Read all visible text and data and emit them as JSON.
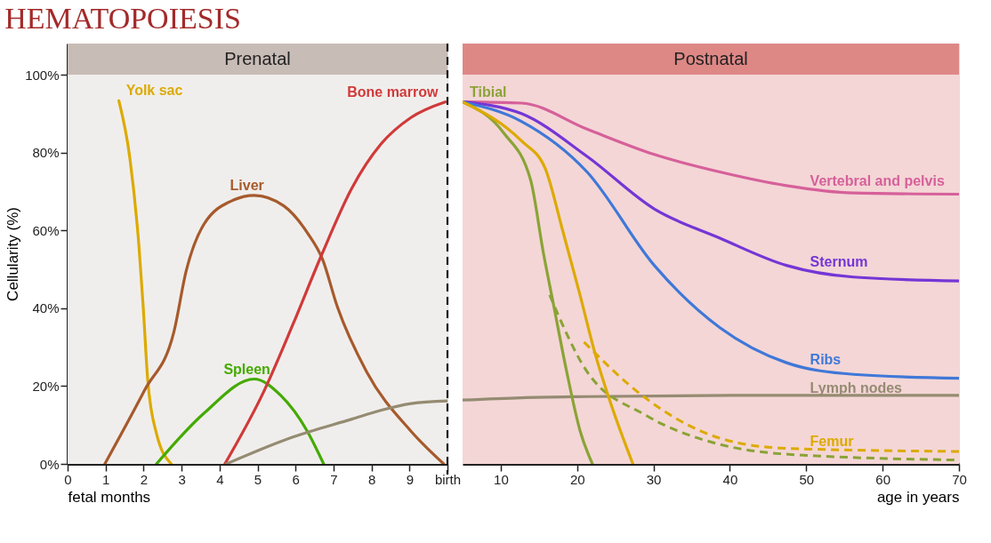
{
  "chart_data": [
    {
      "type": "line",
      "title": "HEMATOPOIESIS",
      "xlabel": "fetal months",
      "ylabel": "Cellularity (%)",
      "xlim": [
        0,
        10
      ],
      "xticks": [
        0,
        1,
        2,
        3,
        4,
        5,
        6,
        7,
        8,
        9,
        {
          "value": 10,
          "label": "birth"
        }
      ],
      "ylim": [
        0,
        108
      ],
      "yticks": [
        {
          "value": 0,
          "label": "0%"
        },
        {
          "value": 20,
          "label": "20%"
        },
        {
          "value": 40,
          "label": "40%"
        },
        {
          "value": 60,
          "label": "60%"
        },
        {
          "value": 80,
          "label": "80%"
        },
        {
          "value": 100,
          "label": "100%"
        }
      ],
      "marker": "none",
      "bands": [
        {
          "axis": "y",
          "from": 0,
          "to": 100,
          "label": null,
          "color": "#f0eeec"
        },
        {
          "axis": "y",
          "from": 100,
          "to": 108,
          "label": "Prenatal",
          "color": "#c8bcb6"
        }
      ],
      "ref_lines": [
        {
          "axis": "x",
          "value": 10,
          "label": null,
          "color": "#111111",
          "line_style": "dashed"
        }
      ],
      "series": [
        {
          "name": "Yolk sac",
          "color": "#dcaa00",
          "x": [
            1.35,
            1.64,
            1.88,
            1.99,
            2.11,
            2.34,
            2.73
          ],
          "values": [
            93.3,
            78.5,
            55.7,
            40.4,
            21.5,
            7.8,
            0
          ]
        },
        {
          "name": "Liver",
          "color": "#a65a2c",
          "x": [
            0.98,
            2.03,
            2.8,
            3.12,
            3.59,
            4.37,
            4.91,
            5.69,
            6.31,
            6.71,
            7.1,
            7.87,
            9.04,
            9.9
          ],
          "values": [
            0,
            19,
            34,
            49.5,
            61.6,
            67.8,
            69,
            66.3,
            59.4,
            52.6,
            40.4,
            23.7,
            8.4,
            0
          ]
        },
        {
          "name": "Spleen",
          "color": "#44aa00",
          "x": [
            2.34,
            3.59,
            4.91,
            5.61,
            6.31,
            6.74
          ],
          "values": [
            0,
            13,
            21.8,
            17.6,
            8.4,
            0
          ]
        },
        {
          "name": "Bone marrow",
          "color": "#d03a3a",
          "x": [
            4.14,
            5.15,
            5.93,
            6.7,
            7.48,
            8.26,
            9.04,
            9.94
          ],
          "values": [
            0,
            18.3,
            35.8,
            54,
            70.8,
            82.3,
            89,
            93
          ]
        },
        {
          "color": "#958b72",
          "x": [
            4.18,
            5.93,
            7.48,
            8.26,
            9.04,
            10
          ],
          "values": [
            0,
            6.9,
            11.5,
            13.8,
            15.5,
            16.2
          ]
        }
      ]
    },
    {
      "type": "line",
      "xlabel": "age in years",
      "xlim": [
        5,
        70
      ],
      "xticks": [
        10,
        20,
        30,
        40,
        50,
        60,
        70
      ],
      "ylim": [
        0,
        108
      ],
      "tick_labels": "x",
      "marker": "none",
      "bands": [
        {
          "axis": "y",
          "from": 0,
          "to": 100,
          "label": null,
          "color": "#f4d6d6"
        },
        {
          "axis": "y",
          "from": 100,
          "to": 108,
          "label": "Postnatal",
          "color": "#de8886"
        }
      ],
      "series": [
        {
          "name": "Vertebral and pelvis",
          "color": "#d6609a",
          "x": [
            5,
            12.7,
            21.3,
            30.1,
            38.7,
            47.4,
            56.2,
            70
          ],
          "values": [
            93,
            92.7,
            86,
            79.5,
            75,
            71.5,
            69.6,
            69.3
          ]
        },
        {
          "name": "Sternum",
          "color": "#7436d6",
          "x": [
            5,
            12.7,
            21.3,
            30.1,
            38.7,
            47.4,
            56.2,
            70
          ],
          "values": [
            93,
            90,
            79,
            65.5,
            58,
            51,
            48,
            47
          ]
        },
        {
          "name": "Ribs",
          "color": "#3f78d8",
          "x": [
            5,
            12.7,
            21.3,
            30.1,
            38.7,
            47.4,
            56.2,
            70
          ],
          "values": [
            93,
            88,
            75,
            51,
            35,
            26,
            23,
            22
          ]
        },
        {
          "name": "Lymph nodes",
          "color": "#958b72",
          "x": [
            5,
            12.7,
            21.3,
            40,
            70
          ],
          "values": [
            16.4,
            17,
            17.3,
            17.6,
            17.6
          ]
        },
        {
          "name": "Tibial",
          "color": "#8aa336",
          "x": [
            5,
            10.4,
            13.9,
            15.6,
            16.9,
            18.6,
            20.4,
            22
          ],
          "values": [
            93,
            85,
            73,
            54,
            41,
            24,
            8.4,
            0
          ]
        },
        {
          "color": "#8aa336",
          "line_style": "dashed",
          "x": [
            16.4,
            21.2,
            28.9,
            38.7,
            47.4,
            70
          ],
          "values": [
            43.4,
            24,
            12.6,
            5,
            2.5,
            1
          ]
        },
        {
          "color": "#dcaa00",
          "x": [
            5,
            12.7,
            15.8,
            18.1,
            20.3,
            22.4,
            24.6,
            27.3
          ],
          "values": [
            93,
            83,
            76,
            60,
            44,
            28,
            14.4,
            0
          ]
        },
        {
          "name": "Femur",
          "color": "#dcaa00",
          "line_style": "dashed",
          "x": [
            20.9,
            28.9,
            38.7,
            47.4,
            70
          ],
          "values": [
            31.3,
            17,
            6.6,
            4,
            3.2
          ]
        }
      ]
    }
  ]
}
